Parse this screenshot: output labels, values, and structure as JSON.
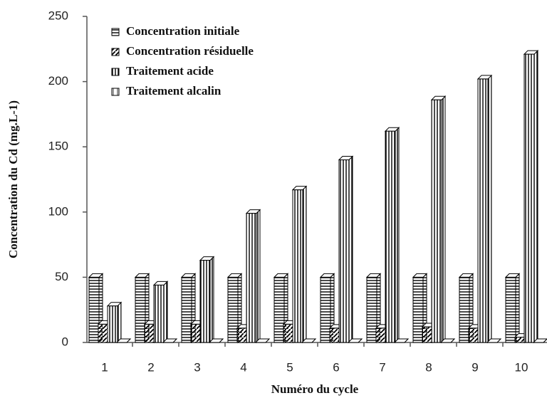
{
  "chart_data": {
    "type": "bar3d",
    "y_label": "Concentration du Cd (mg.L-1)",
    "x_label": "Numéro du cycle",
    "categories": [
      "1",
      "2",
      "3",
      "4",
      "5",
      "6",
      "7",
      "8",
      "9",
      "10"
    ],
    "series": [
      {
        "name": "Concentration initiale",
        "color": "#000000",
        "pattern": "horizontal",
        "values": [
          50,
          50,
          50,
          50,
          50,
          50,
          50,
          50,
          50,
          50
        ]
      },
      {
        "name": "Concentration résiduelle",
        "color": "#000000",
        "pattern": "diagonal",
        "values": [
          14,
          14,
          14,
          11,
          14,
          11,
          11,
          12,
          11,
          4
        ]
      },
      {
        "name": "Traitement acide",
        "color": "#000000",
        "pattern": "vertical",
        "values": [
          28,
          44,
          63,
          99,
          117,
          140,
          162,
          186,
          202,
          221
        ]
      },
      {
        "name": "Traitement alcalin",
        "color": "#000000",
        "pattern": "sparse",
        "values": [
          0,
          0,
          0,
          0,
          0,
          0,
          0,
          0,
          0,
          0
        ]
      }
    ],
    "ylim": [
      0,
      250
    ],
    "yticks": [
      0,
      50,
      100,
      150,
      200,
      250
    ],
    "legend": "upper left"
  }
}
